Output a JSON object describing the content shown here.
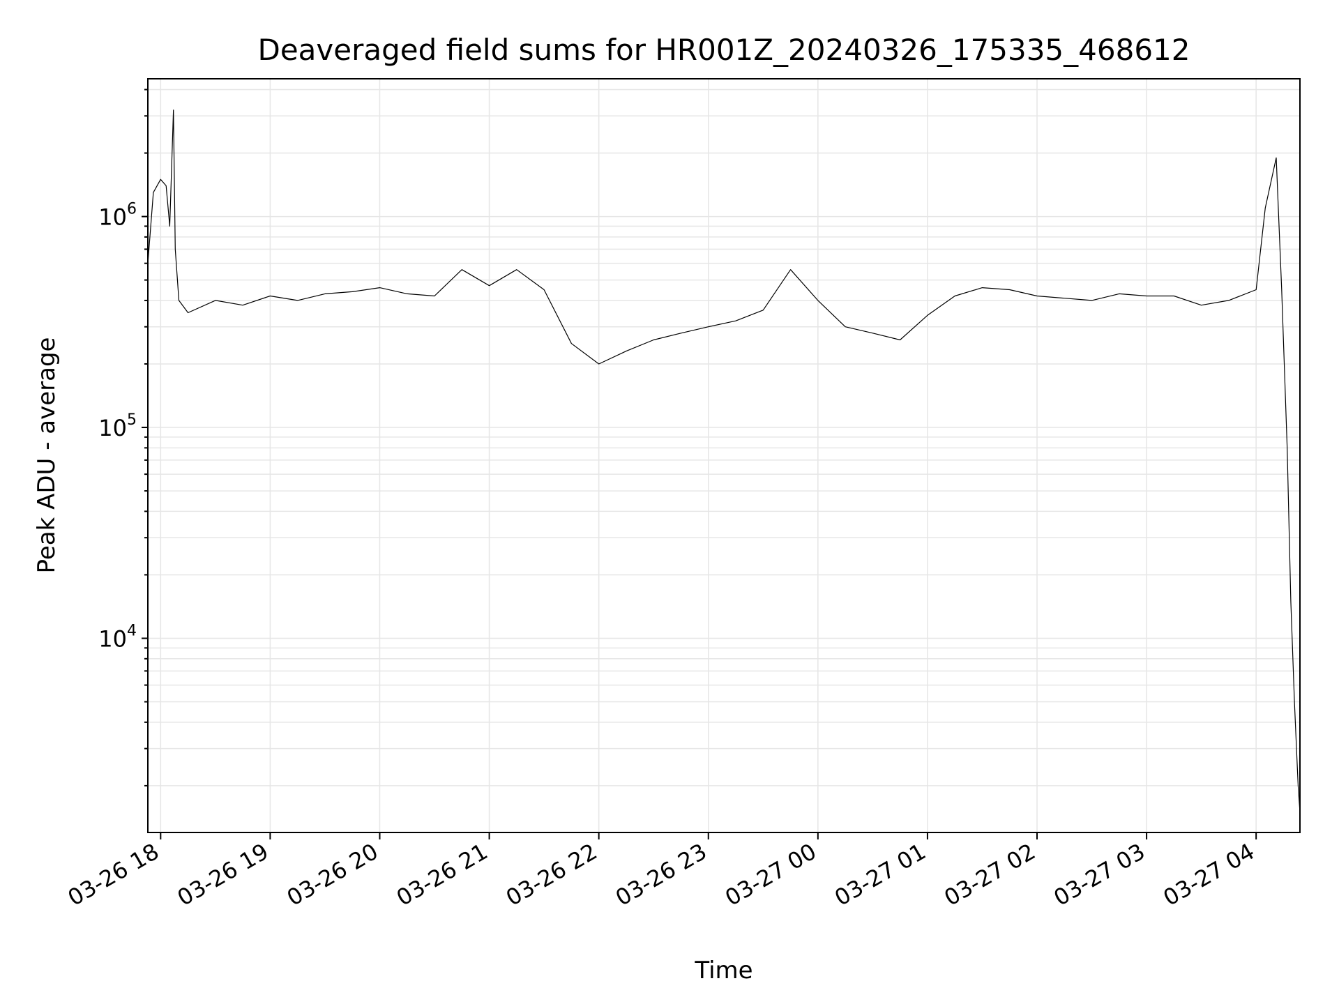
{
  "chart_data": {
    "type": "line",
    "title": "Deaveraged field sums for HR001Z_20240326_175335_468612",
    "xlabel": "Time",
    "ylabel": "Peak ADU - average",
    "yscale": "log",
    "ylim": [
      1200,
      4500000
    ],
    "xlim": [
      "2024-03-26 17:53",
      "2024-03-27 04:24"
    ],
    "x_ticks": [
      {
        "time": "2024-03-26 18:00",
        "label": "03-26 18"
      },
      {
        "time": "2024-03-26 19:00",
        "label": "03-26 19"
      },
      {
        "time": "2024-03-26 20:00",
        "label": "03-26 20"
      },
      {
        "time": "2024-03-26 21:00",
        "label": "03-26 21"
      },
      {
        "time": "2024-03-26 22:00",
        "label": "03-26 22"
      },
      {
        "time": "2024-03-26 23:00",
        "label": "03-26 23"
      },
      {
        "time": "2024-03-27 00:00",
        "label": "03-27 00"
      },
      {
        "time": "2024-03-27 01:00",
        "label": "03-27 01"
      },
      {
        "time": "2024-03-27 02:00",
        "label": "03-27 02"
      },
      {
        "time": "2024-03-27 03:00",
        "label": "03-27 03"
      },
      {
        "time": "2024-03-27 04:00",
        "label": "03-27 04"
      }
    ],
    "y_ticks": [
      {
        "value": 10000,
        "mantissa": "10",
        "exponent": "4"
      },
      {
        "value": 100000,
        "mantissa": "10",
        "exponent": "5"
      },
      {
        "value": 1000000,
        "mantissa": "10",
        "exponent": "6"
      }
    ],
    "grid": true,
    "line_color": "#000000",
    "series": [
      {
        "points": [
          [
            "2024-03-26 17:53",
            600000
          ],
          [
            "2024-03-26 17:56",
            1300000
          ],
          [
            "2024-03-26 18:00",
            1500000
          ],
          [
            "2024-03-26 18:03",
            1400000
          ],
          [
            "2024-03-26 18:05",
            900000
          ],
          [
            "2024-03-26 18:07",
            3200000
          ],
          [
            "2024-03-26 18:08",
            700000
          ],
          [
            "2024-03-26 18:10",
            400000
          ],
          [
            "2024-03-26 18:15",
            350000
          ],
          [
            "2024-03-26 18:30",
            400000
          ],
          [
            "2024-03-26 18:45",
            380000
          ],
          [
            "2024-03-26 19:00",
            420000
          ],
          [
            "2024-03-26 19:15",
            400000
          ],
          [
            "2024-03-26 19:30",
            430000
          ],
          [
            "2024-03-26 19:45",
            440000
          ],
          [
            "2024-03-26 20:00",
            460000
          ],
          [
            "2024-03-26 20:15",
            430000
          ],
          [
            "2024-03-26 20:30",
            420000
          ],
          [
            "2024-03-26 20:45",
            560000
          ],
          [
            "2024-03-26 21:00",
            470000
          ],
          [
            "2024-03-26 21:15",
            560000
          ],
          [
            "2024-03-26 21:30",
            450000
          ],
          [
            "2024-03-26 21:45",
            250000
          ],
          [
            "2024-03-26 22:00",
            200000
          ],
          [
            "2024-03-26 22:15",
            230000
          ],
          [
            "2024-03-26 22:30",
            260000
          ],
          [
            "2024-03-26 22:45",
            280000
          ],
          [
            "2024-03-26 23:00",
            300000
          ],
          [
            "2024-03-26 23:15",
            320000
          ],
          [
            "2024-03-26 23:30",
            360000
          ],
          [
            "2024-03-26 23:45",
            560000
          ],
          [
            "2024-03-27 00:00",
            400000
          ],
          [
            "2024-03-27 00:15",
            300000
          ],
          [
            "2024-03-27 00:30",
            280000
          ],
          [
            "2024-03-27 00:45",
            260000
          ],
          [
            "2024-03-27 01:00",
            340000
          ],
          [
            "2024-03-27 01:15",
            420000
          ],
          [
            "2024-03-27 01:30",
            460000
          ],
          [
            "2024-03-27 01:45",
            450000
          ],
          [
            "2024-03-27 02:00",
            420000
          ],
          [
            "2024-03-27 02:15",
            410000
          ],
          [
            "2024-03-27 02:30",
            400000
          ],
          [
            "2024-03-27 02:45",
            430000
          ],
          [
            "2024-03-27 03:00",
            420000
          ],
          [
            "2024-03-27 03:15",
            420000
          ],
          [
            "2024-03-27 03:30",
            380000
          ],
          [
            "2024-03-27 03:45",
            400000
          ],
          [
            "2024-03-27 04:00",
            450000
          ],
          [
            "2024-03-27 04:05",
            1100000
          ],
          [
            "2024-03-27 04:11",
            1900000
          ],
          [
            "2024-03-27 04:14",
            450000
          ],
          [
            "2024-03-27 04:17",
            80000
          ],
          [
            "2024-03-27 04:19",
            15000
          ],
          [
            "2024-03-27 04:21",
            5000
          ],
          [
            "2024-03-27 04:23",
            2000
          ],
          [
            "2024-03-27 04:24",
            1500
          ]
        ]
      }
    ]
  }
}
